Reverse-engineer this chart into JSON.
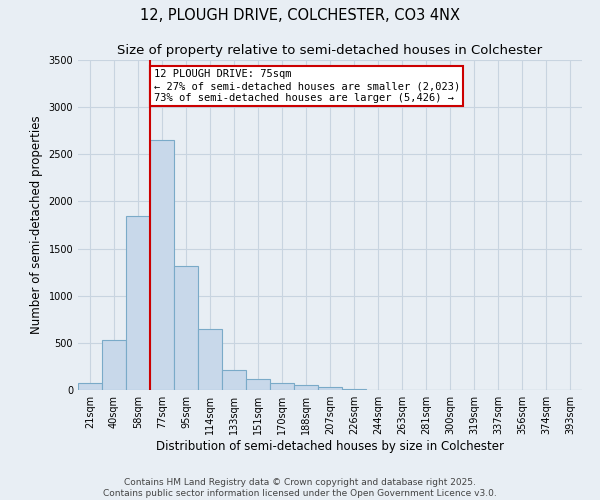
{
  "title_line1": "12, PLOUGH DRIVE, COLCHESTER, CO3 4NX",
  "title_line2": "Size of property relative to semi-detached houses in Colchester",
  "xlabel": "Distribution of semi-detached houses by size in Colchester",
  "ylabel": "Number of semi-detached properties",
  "footer_line1": "Contains HM Land Registry data © Crown copyright and database right 2025.",
  "footer_line2": "Contains public sector information licensed under the Open Government Licence v3.0.",
  "categories": [
    "21sqm",
    "40sqm",
    "58sqm",
    "77sqm",
    "95sqm",
    "114sqm",
    "133sqm",
    "151sqm",
    "170sqm",
    "188sqm",
    "207sqm",
    "226sqm",
    "244sqm",
    "263sqm",
    "281sqm",
    "300sqm",
    "319sqm",
    "337sqm",
    "356sqm",
    "374sqm",
    "393sqm"
  ],
  "values": [
    70,
    530,
    1850,
    2650,
    1320,
    650,
    215,
    115,
    75,
    50,
    30,
    10,
    5,
    3,
    2,
    1,
    0,
    0,
    0,
    0,
    0
  ],
  "bar_color": "#c8d8ea",
  "bar_edge_color": "#7aaac8",
  "bar_edge_width": 0.8,
  "subject_bar_index": 3,
  "red_line_color": "#cc0000",
  "annotation_text_line1": "12 PLOUGH DRIVE: 75sqm",
  "annotation_text_line2": "← 27% of semi-detached houses are smaller (2,023)",
  "annotation_text_line3": "73% of semi-detached houses are larger (5,426) →",
  "annotation_box_edge_color": "#cc0000",
  "annotation_box_face_color": "#ffffff",
  "grid_color": "#c8d4e0",
  "background_color": "#e8eef4",
  "plot_bg_color": "#e8eef4",
  "ylim": [
    0,
    3500
  ],
  "yticks": [
    0,
    500,
    1000,
    1500,
    2000,
    2500,
    3000,
    3500
  ],
  "title1_fontsize": 10.5,
  "title2_fontsize": 9.5,
  "axis_label_fontsize": 8.5,
  "tick_fontsize": 7,
  "annotation_fontsize": 7.5,
  "footer_fontsize": 6.5
}
